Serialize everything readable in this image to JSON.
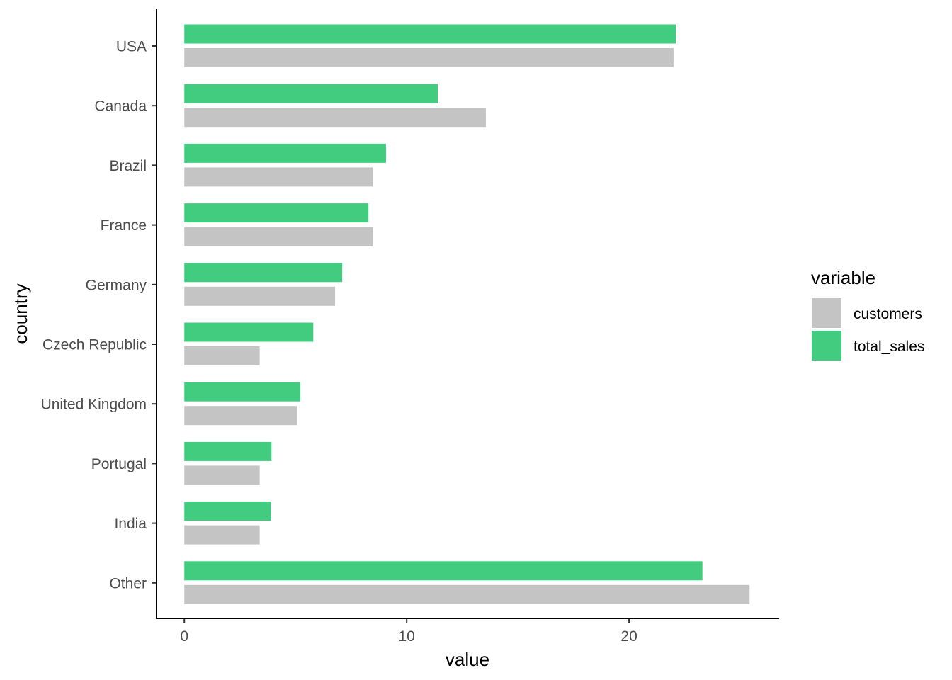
{
  "chart_data": {
    "type": "bar",
    "orientation": "horizontal",
    "categories": [
      "USA",
      "Canada",
      "Brazil",
      "France",
      "Germany",
      "Czech Republic",
      "United Kingdom",
      "Portugal",
      "India",
      "Other"
    ],
    "series": [
      {
        "name": "total_sales",
        "color": "#42cc80",
        "values": [
          22.1,
          11.4,
          9.07,
          8.28,
          7.1,
          5.8,
          5.22,
          3.92,
          3.89,
          23.3
        ]
      },
      {
        "name": "customers",
        "color": "#c4c4c4",
        "values": [
          22.0,
          13.56,
          8.47,
          8.47,
          6.78,
          3.39,
          5.08,
          3.39,
          3.39,
          25.42
        ]
      }
    ],
    "xlabel": "value",
    "ylabel": "country",
    "xlim": [
      -1.25,
      26.75
    ],
    "xticks": [
      0,
      10,
      20
    ],
    "grid": false,
    "legend": {
      "title": "variable",
      "position": "right",
      "entries": [
        {
          "label": "customers",
          "color": "#c4c4c4"
        },
        {
          "label": "total_sales",
          "color": "#42cc80"
        }
      ]
    }
  }
}
